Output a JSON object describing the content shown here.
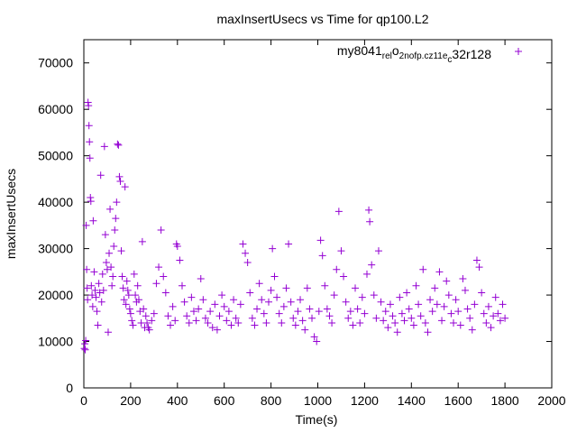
{
  "chart_data": {
    "type": "scatter",
    "title": "maxInsertUsecs vs Time for qp100.L2",
    "xlabel": "Time(s)",
    "ylabel": "maxInsertUsecs",
    "xlim": [
      0,
      2000
    ],
    "ylim": [
      0,
      75000
    ],
    "x_ticks": [
      0,
      200,
      400,
      600,
      800,
      1000,
      1200,
      1400,
      1600,
      1800,
      2000
    ],
    "y_ticks": [
      0,
      10000,
      20000,
      30000,
      40000,
      50000,
      60000,
      70000
    ],
    "x_tick_labels": [
      "0",
      "200",
      "400",
      "600",
      "800",
      "1000",
      "1200",
      "1400",
      "1600",
      "1800",
      "2000"
    ],
    "y_tick_labels": [
      "0",
      "10000",
      "20000",
      "30000",
      "40000",
      "50000",
      "60000",
      "70000"
    ],
    "grid": false,
    "legend_position": "top-right",
    "series": [
      {
        "name": "my8041_rel_o2nofp.cz11e_c32r128",
        "name_parts": [
          {
            "t": "my8041",
            "s": false
          },
          {
            "t": "rel",
            "s": true
          },
          {
            "t": "o",
            "s": false
          },
          {
            "t": "2nofp.cz11e",
            "s": true
          },
          {
            "t": "c",
            "s": true
          },
          {
            "t": "32r128",
            "s": false
          }
        ],
        "color": "#9400d3",
        "marker": "plus",
        "points": [
          [
            2,
            8500
          ],
          [
            4,
            9500
          ],
          [
            6,
            8200
          ],
          [
            8,
            10200
          ],
          [
            10,
            35000
          ],
          [
            12,
            25500
          ],
          [
            14,
            21500
          ],
          [
            16,
            19000
          ],
          [
            18,
            61500
          ],
          [
            20,
            60800
          ],
          [
            22,
            56500
          ],
          [
            24,
            53000
          ],
          [
            26,
            49500
          ],
          [
            28,
            41000
          ],
          [
            30,
            40200
          ],
          [
            32,
            22000
          ],
          [
            35,
            20000
          ],
          [
            38,
            17500
          ],
          [
            40,
            36000
          ],
          [
            44,
            25000
          ],
          [
            48,
            21000
          ],
          [
            52,
            19500
          ],
          [
            56,
            16500
          ],
          [
            60,
            13500
          ],
          [
            64,
            22500
          ],
          [
            68,
            20500
          ],
          [
            72,
            45800
          ],
          [
            76,
            18500
          ],
          [
            80,
            24500
          ],
          [
            84,
            21000
          ],
          [
            88,
            52000
          ],
          [
            92,
            33000
          ],
          [
            96,
            27000
          ],
          [
            100,
            25500
          ],
          [
            104,
            12000
          ],
          [
            108,
            29000
          ],
          [
            112,
            38500
          ],
          [
            116,
            26000
          ],
          [
            120,
            22000
          ],
          [
            124,
            24000
          ],
          [
            128,
            30500
          ],
          [
            132,
            34000
          ],
          [
            136,
            36500
          ],
          [
            140,
            40000
          ],
          [
            144,
            52500
          ],
          [
            148,
            52300
          ],
          [
            152,
            45500
          ],
          [
            156,
            44500
          ],
          [
            160,
            29500
          ],
          [
            164,
            24000
          ],
          [
            168,
            21500
          ],
          [
            172,
            19000
          ],
          [
            176,
            43300
          ],
          [
            180,
            18000
          ],
          [
            184,
            23000
          ],
          [
            188,
            21000
          ],
          [
            192,
            20000
          ],
          [
            196,
            17000
          ],
          [
            200,
            16000
          ],
          [
            205,
            14500
          ],
          [
            210,
            13500
          ],
          [
            215,
            24500
          ],
          [
            220,
            20000
          ],
          [
            225,
            18500
          ],
          [
            230,
            22000
          ],
          [
            235,
            19000
          ],
          [
            240,
            16500
          ],
          [
            245,
            14000
          ],
          [
            250,
            31500
          ],
          [
            255,
            17000
          ],
          [
            260,
            13000
          ],
          [
            265,
            15500
          ],
          [
            270,
            14000
          ],
          [
            275,
            13000
          ],
          [
            280,
            12500
          ],
          [
            290,
            14500
          ],
          [
            300,
            16000
          ],
          [
            310,
            22500
          ],
          [
            320,
            26000
          ],
          [
            330,
            34000
          ],
          [
            340,
            24000
          ],
          [
            350,
            20500
          ],
          [
            360,
            15500
          ],
          [
            370,
            13500
          ],
          [
            380,
            17500
          ],
          [
            390,
            14500
          ],
          [
            396,
            31000
          ],
          [
            400,
            30500
          ],
          [
            410,
            27500
          ],
          [
            420,
            22000
          ],
          [
            430,
            18500
          ],
          [
            440,
            15500
          ],
          [
            450,
            14000
          ],
          [
            460,
            19500
          ],
          [
            470,
            16500
          ],
          [
            480,
            14500
          ],
          [
            490,
            17000
          ],
          [
            500,
            23500
          ],
          [
            510,
            19000
          ],
          [
            520,
            15000
          ],
          [
            530,
            14000
          ],
          [
            540,
            16500
          ],
          [
            550,
            13000
          ],
          [
            560,
            18000
          ],
          [
            570,
            12500
          ],
          [
            580,
            15500
          ],
          [
            590,
            20000
          ],
          [
            600,
            17500
          ],
          [
            610,
            14500
          ],
          [
            620,
            16500
          ],
          [
            630,
            13500
          ],
          [
            640,
            19000
          ],
          [
            650,
            15000
          ],
          [
            660,
            14000
          ],
          [
            670,
            18000
          ],
          [
            680,
            31000
          ],
          [
            690,
            29000
          ],
          [
            700,
            27000
          ],
          [
            710,
            20500
          ],
          [
            720,
            15000
          ],
          [
            730,
            13500
          ],
          [
            740,
            17000
          ],
          [
            750,
            22500
          ],
          [
            760,
            19000
          ],
          [
            770,
            16000
          ],
          [
            780,
            14000
          ],
          [
            790,
            18500
          ],
          [
            800,
            21000
          ],
          [
            806,
            30000
          ],
          [
            815,
            24000
          ],
          [
            825,
            19500
          ],
          [
            835,
            16000
          ],
          [
            845,
            14000
          ],
          [
            855,
            17500
          ],
          [
            865,
            21500
          ],
          [
            875,
            31000
          ],
          [
            885,
            18500
          ],
          [
            895,
            15000
          ],
          [
            905,
            13500
          ],
          [
            915,
            16500
          ],
          [
            925,
            19000
          ],
          [
            935,
            14500
          ],
          [
            945,
            12500
          ],
          [
            955,
            21500
          ],
          [
            965,
            17000
          ],
          [
            975,
            15000
          ],
          [
            985,
            11000
          ],
          [
            995,
            10000
          ],
          [
            1005,
            16500
          ],
          [
            1012,
            31800
          ],
          [
            1020,
            28500
          ],
          [
            1030,
            22000
          ],
          [
            1040,
            17000
          ],
          [
            1050,
            15500
          ],
          [
            1060,
            14000
          ],
          [
            1070,
            20000
          ],
          [
            1080,
            25500
          ],
          [
            1090,
            38000
          ],
          [
            1100,
            29500
          ],
          [
            1110,
            24000
          ],
          [
            1120,
            18500
          ],
          [
            1130,
            15000
          ],
          [
            1140,
            16500
          ],
          [
            1150,
            13500
          ],
          [
            1160,
            21500
          ],
          [
            1170,
            17000
          ],
          [
            1180,
            14000
          ],
          [
            1190,
            19500
          ],
          [
            1200,
            16000
          ],
          [
            1210,
            24500
          ],
          [
            1218,
            38300
          ],
          [
            1222,
            35800
          ],
          [
            1230,
            26500
          ],
          [
            1240,
            20000
          ],
          [
            1250,
            15000
          ],
          [
            1260,
            29500
          ],
          [
            1270,
            18500
          ],
          [
            1280,
            14500
          ],
          [
            1290,
            16500
          ],
          [
            1300,
            13000
          ],
          [
            1310,
            18000
          ],
          [
            1320,
            15500
          ],
          [
            1330,
            14000
          ],
          [
            1340,
            12000
          ],
          [
            1350,
            19500
          ],
          [
            1360,
            16000
          ],
          [
            1370,
            14500
          ],
          [
            1380,
            20500
          ],
          [
            1390,
            17000
          ],
          [
            1400,
            15000
          ],
          [
            1410,
            13500
          ],
          [
            1420,
            22000
          ],
          [
            1430,
            18000
          ],
          [
            1440,
            15500
          ],
          [
            1450,
            25500
          ],
          [
            1460,
            14000
          ],
          [
            1470,
            12000
          ],
          [
            1480,
            19000
          ],
          [
            1490,
            16500
          ],
          [
            1500,
            21500
          ],
          [
            1510,
            18000
          ],
          [
            1520,
            25000
          ],
          [
            1530,
            14500
          ],
          [
            1540,
            17500
          ],
          [
            1550,
            23000
          ],
          [
            1560,
            20000
          ],
          [
            1570,
            16000
          ],
          [
            1580,
            14000
          ],
          [
            1590,
            19000
          ],
          [
            1600,
            16500
          ],
          [
            1610,
            13500
          ],
          [
            1620,
            23500
          ],
          [
            1630,
            21000
          ],
          [
            1640,
            17000
          ],
          [
            1650,
            15000
          ],
          [
            1660,
            12500
          ],
          [
            1670,
            18000
          ],
          [
            1680,
            27500
          ],
          [
            1690,
            26000
          ],
          [
            1700,
            20500
          ],
          [
            1710,
            16000
          ],
          [
            1720,
            14000
          ],
          [
            1730,
            17500
          ],
          [
            1740,
            13000
          ],
          [
            1750,
            15500
          ],
          [
            1760,
            19500
          ],
          [
            1770,
            16000
          ],
          [
            1780,
            14500
          ],
          [
            1790,
            18000
          ],
          [
            1800,
            15000
          ]
        ]
      }
    ]
  }
}
